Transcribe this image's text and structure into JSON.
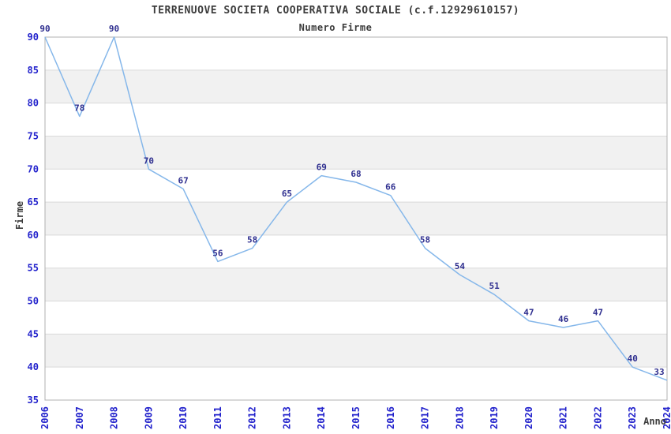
{
  "header": {
    "title": "TERRENUOVE SOCIETA COOPERATIVA SOCIALE (c.f.12929610157)",
    "subtitle": "Numero Firme"
  },
  "chart_data": {
    "type": "line",
    "title": "TERRENUOVE SOCIETA COOPERATIVA SOCIALE (c.f.12929610157)",
    "subtitle": "Numero Firme",
    "xlabel": "Anno",
    "ylabel": "Firme",
    "categories": [
      "2006",
      "2007",
      "2008",
      "2009",
      "2010",
      "2011",
      "2012",
      "2013",
      "2014",
      "2015",
      "2016",
      "2017",
      "2018",
      "2019",
      "2020",
      "2021",
      "2022",
      "2023",
      "2024"
    ],
    "values": [
      90,
      78,
      90,
      70,
      67,
      56,
      58,
      65,
      69,
      68,
      66,
      58,
      54,
      51,
      47,
      46,
      47,
      40,
      33
    ],
    "point_labels": [
      "90",
      "78",
      "90",
      "70",
      "67",
      "56",
      "58",
      "65",
      "69",
      "68",
      "66",
      "58",
      "54",
      "51",
      "47",
      "46",
      "47",
      "40",
      "33"
    ],
    "ylim": [
      35,
      90
    ],
    "ytick_step": 5,
    "yticks": [
      35,
      40,
      45,
      50,
      55,
      60,
      65,
      70,
      75,
      80,
      85,
      90
    ],
    "grid": "horizontal",
    "alternating_bands": true,
    "legend_position": "none",
    "render_quirk": {
      "note": "final 2024 point is drawn at ~38 on the axis although its data label reads 33",
      "plot_value_last": 38
    },
    "colors": {
      "line": "#85b7ea",
      "point_label": "#2e2e8f",
      "axis_tick_label": "#2222cc",
      "titles": "#3c3c3c",
      "band_fill": "#f1f1f1",
      "gridline": "#d9d9d9",
      "plot_border": "#b0b0b0",
      "background": "#ffffff"
    }
  }
}
